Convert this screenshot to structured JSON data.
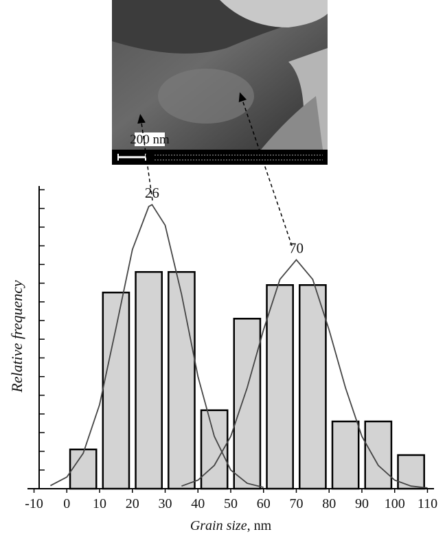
{
  "chart_data": {
    "type": "histogram",
    "xlabel": {
      "name": "Grain size",
      "unit": ", nm"
    },
    "ylabel": "Relative frequency",
    "bins": [
      0,
      10,
      20,
      30,
      40,
      50,
      60,
      70,
      80,
      90,
      100,
      110
    ],
    "values": [
      2.1,
      10.5,
      11.6,
      11.6,
      4.2,
      9.1,
      10.9,
      10.9,
      3.6,
      3.6,
      1.8
    ],
    "color": "#d3d3d3",
    "curves": [
      {
        "color": "#444444",
        "x": [
          -5,
          0,
          5,
          10,
          15,
          20,
          25,
          26,
          30,
          35,
          40,
          45,
          50,
          55,
          60
        ],
        "values": [
          0.16,
          0.62,
          1.9,
          4.5,
          8.6,
          12.8,
          15.1,
          15.2,
          14.1,
          10.4,
          6.0,
          2.8,
          1.0,
          0.29,
          0.07
        ]
      },
      {
        "color": "#444444",
        "x": [
          35,
          40,
          45,
          50,
          55,
          60,
          65,
          70,
          75,
          80,
          85,
          90,
          95,
          100,
          105,
          110
        ],
        "values": [
          0.14,
          0.46,
          1.25,
          2.8,
          5.4,
          8.5,
          11.2,
          12.25,
          11.2,
          8.5,
          5.4,
          2.8,
          1.25,
          0.46,
          0.14,
          0.04
        ]
      }
    ],
    "annotations": [
      {
        "text": "26",
        "x": 26,
        "y": 15.2
      },
      {
        "text": "70",
        "x": 70,
        "y": 12.25
      }
    ],
    "image_label": "200 nm",
    "xlim": [
      -12,
      112
    ],
    "ylim": [
      0,
      16.2
    ],
    "xticks": [
      -10,
      0,
      10,
      20,
      30,
      40,
      50,
      60,
      70,
      80,
      90,
      100,
      110
    ],
    "yticks": [
      1,
      2,
      3,
      4,
      5,
      6,
      7,
      8,
      9,
      10,
      11,
      12,
      13,
      14,
      15,
      16
    ]
  }
}
